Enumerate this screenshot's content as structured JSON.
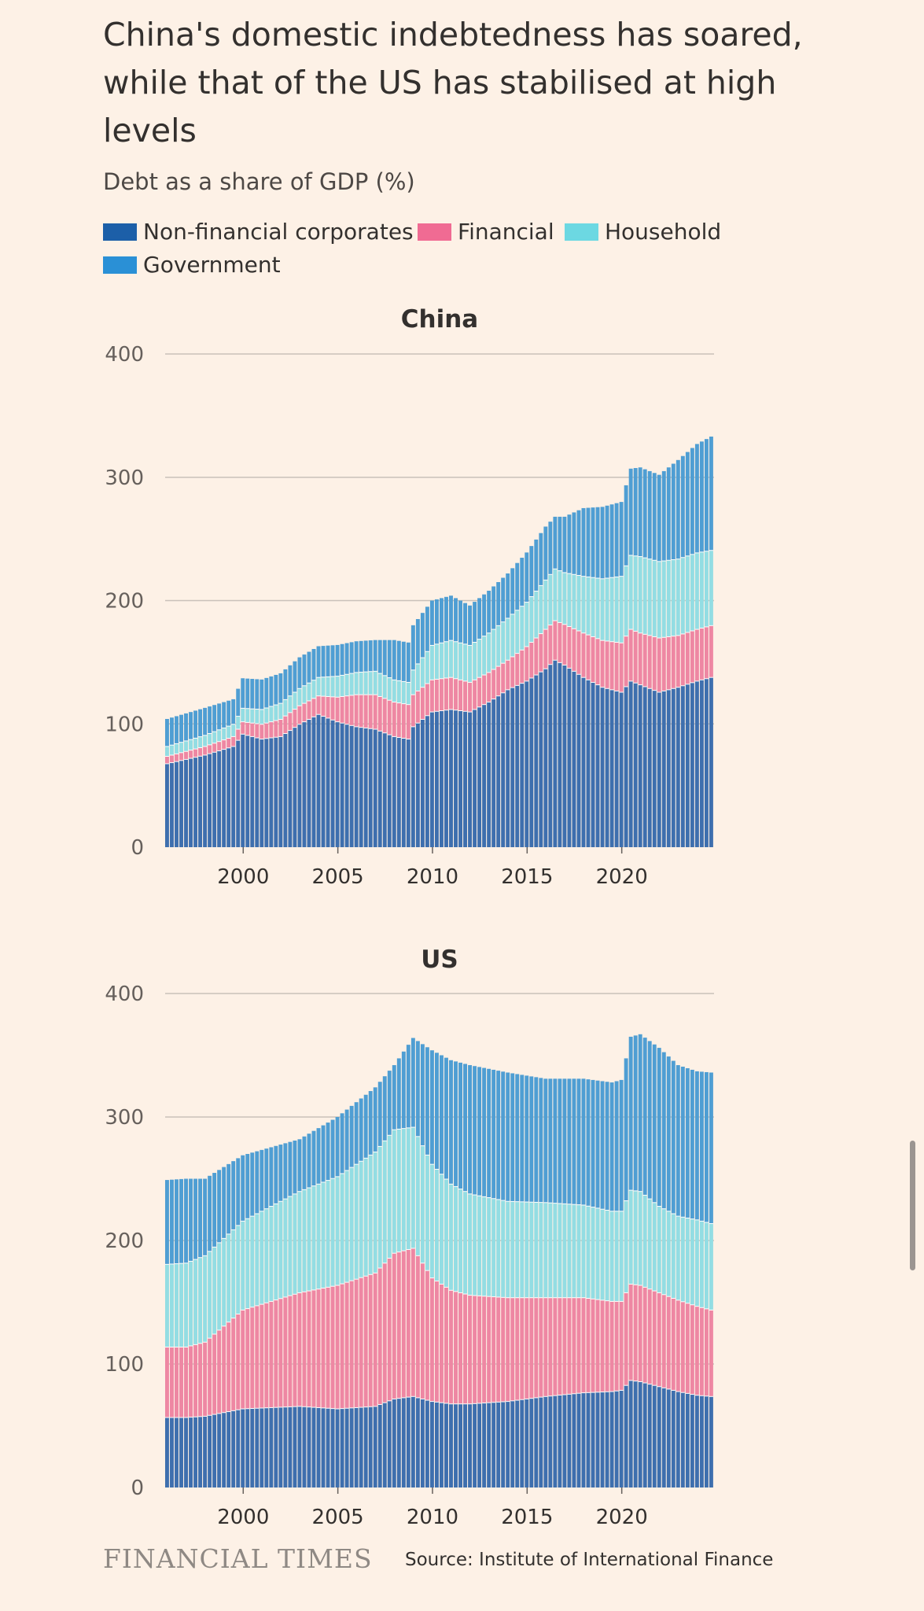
{
  "title": "China's domestic indebtedness has soared, while that of the US has stabilised at high levels",
  "subtitle": "Debt as a share of GDP (%)",
  "legend": [
    {
      "label": "Non-financial corporates",
      "color": "#1c5fa8"
    },
    {
      "label": "Financial",
      "color": "#f06b93"
    },
    {
      "label": "Household",
      "color": "#6cd8e2"
    },
    {
      "label": "Government",
      "color": "#2a90d6"
    }
  ],
  "colors": {
    "nfc": "#3e6fae",
    "fin": "#ee87a3",
    "hh": "#93dde3",
    "gov": "#4f9ed3",
    "grid": "#c9c1b9",
    "bg": "#fdf1e6"
  },
  "chart_data": [
    {
      "type": "stacked-bar",
      "title": "China",
      "x_start": 1996.0,
      "x_end": 2024.75,
      "x_ticks": [
        2000,
        2005,
        2010,
        2015,
        2020
      ],
      "y_ticks": [
        0,
        100,
        200,
        300,
        400
      ],
      "ylim": [
        0,
        400
      ],
      "series_order": [
        "Non-financial corporates",
        "Financial",
        "Household",
        "Government"
      ],
      "anchors": {
        "x": [
          1996.0,
          1998.0,
          1999.5,
          2000.0,
          2001.0,
          2002.0,
          2003.0,
          2004.0,
          2005.0,
          2006.0,
          2007.0,
          2008.0,
          2008.75,
          2009.0,
          2010.0,
          2011.0,
          2012.0,
          2013.0,
          2014.0,
          2015.0,
          2016.0,
          2016.5,
          2017.0,
          2018.0,
          2019.0,
          2020.0,
          2020.5,
          2021.0,
          2022.0,
          2023.0,
          2024.0,
          2024.75
        ],
        "nfc": [
          68,
          75,
          82,
          92,
          88,
          90,
          100,
          108,
          102,
          98,
          96,
          90,
          88,
          98,
          110,
          112,
          110,
          118,
          128,
          135,
          145,
          152,
          148,
          138,
          130,
          126,
          135,
          132,
          126,
          130,
          135,
          138
        ],
        "fin": [
          6,
          7,
          8,
          10,
          12,
          14,
          15,
          15,
          20,
          26,
          28,
          28,
          28,
          26,
          26,
          26,
          24,
          24,
          24,
          28,
          32,
          32,
          33,
          36,
          38,
          40,
          42,
          42,
          44,
          42,
          42,
          42
        ],
        "hh": [
          8,
          9,
          10,
          11,
          12,
          13,
          14,
          15,
          17,
          18,
          19,
          18,
          18,
          20,
          28,
          30,
          30,
          32,
          34,
          36,
          40,
          42,
          42,
          46,
          50,
          54,
          60,
          62,
          62,
          62,
          62,
          61
        ],
        "gov": [
          22,
          22,
          20,
          24,
          24,
          24,
          25,
          25,
          25,
          25,
          25,
          32,
          32,
          36,
          36,
          36,
          32,
          34,
          36,
          40,
          43,
          42,
          45,
          55,
          58,
          60,
          70,
          72,
          70,
          80,
          88,
          92
        ]
      }
    },
    {
      "type": "stacked-bar",
      "title": "US",
      "x_start": 1996.0,
      "x_end": 2024.75,
      "x_ticks": [
        2000,
        2005,
        2010,
        2015,
        2020
      ],
      "y_ticks": [
        0,
        100,
        200,
        300,
        400
      ],
      "ylim": [
        0,
        400
      ],
      "series_order": [
        "Non-financial corporates",
        "Financial",
        "Household",
        "Government"
      ],
      "anchors": {
        "x": [
          1996.0,
          1997.0,
          1998.0,
          2000.0,
          2003.0,
          2005.0,
          2007.0,
          2008.0,
          2009.0,
          2010.0,
          2011.0,
          2012.0,
          2014.0,
          2016.0,
          2018.0,
          2019.5,
          2020.0,
          2020.5,
          2021.0,
          2022.0,
          2023.0,
          2024.0,
          2024.75
        ],
        "nfc": [
          57,
          57,
          58,
          64,
          66,
          64,
          66,
          72,
          74,
          70,
          68,
          68,
          70,
          74,
          77,
          78,
          79,
          87,
          86,
          82,
          78,
          75,
          74
        ],
        "fin": [
          57,
          57,
          60,
          80,
          92,
          100,
          108,
          118,
          120,
          100,
          92,
          88,
          84,
          80,
          77,
          73,
          72,
          78,
          78,
          76,
          74,
          72,
          70
        ],
        "hh": [
          67,
          68,
          70,
          72,
          82,
          88,
          98,
          100,
          98,
          92,
          86,
          82,
          78,
          77,
          75,
          73,
          73,
          76,
          76,
          70,
          68,
          70,
          70
        ],
        "gov": [
          68,
          68,
          62,
          53,
          42,
          48,
          52,
          52,
          72,
          92,
          100,
          104,
          104,
          100,
          102,
          104,
          106,
          124,
          127,
          128,
          122,
          120,
          122
        ]
      }
    }
  ],
  "footer": {
    "brand": "FINANCIAL TIMES",
    "source": "Source: Institute of International Finance"
  }
}
